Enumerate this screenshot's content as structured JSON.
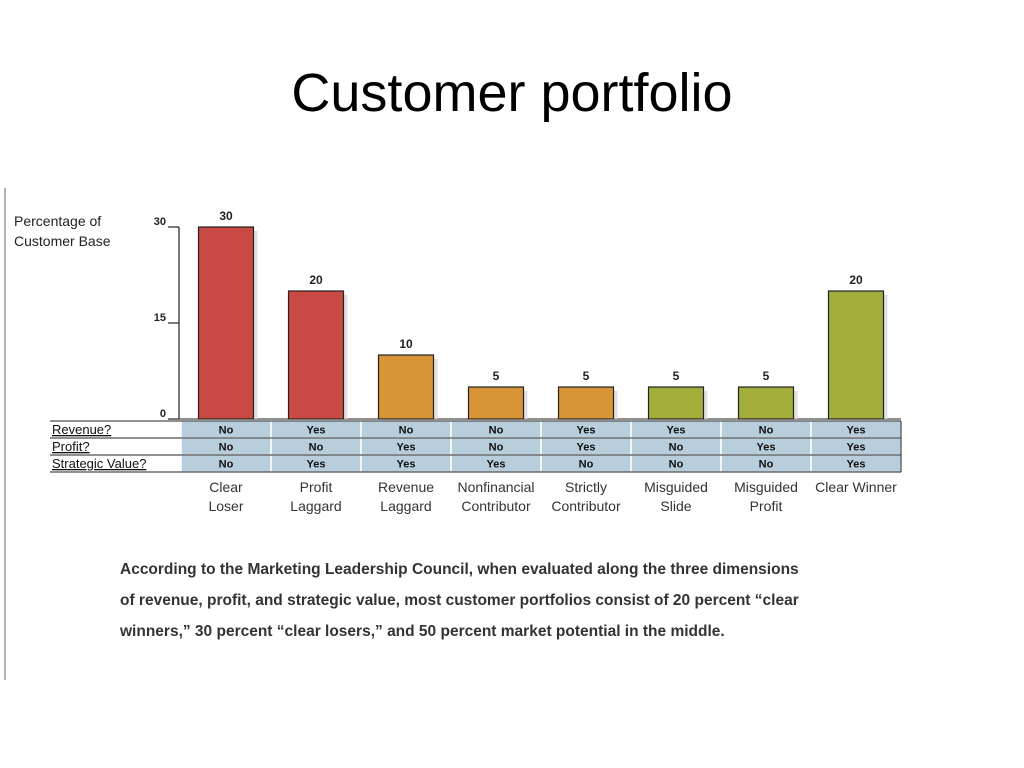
{
  "title": "Customer portfolio",
  "chart_data": {
    "type": "bar",
    "ylabel": [
      "Percentage of",
      "Customer Base"
    ],
    "ylim": [
      0,
      30
    ],
    "yticks": [
      "30",
      "15",
      "0"
    ],
    "categories": [
      [
        "Clear",
        "Loser"
      ],
      [
        "Profit",
        "Laggard"
      ],
      [
        "Revenue",
        "Laggard"
      ],
      [
        "Nonfinancial",
        "Contributor"
      ],
      [
        "Strictly",
        "Contributor"
      ],
      [
        "Misguided",
        "Slide"
      ],
      [
        "Misguided",
        "Profit"
      ],
      [
        "Clear Winner"
      ]
    ],
    "values": [
      30,
      20,
      10,
      5,
      5,
      5,
      5,
      20
    ],
    "value_labels": [
      "30",
      "20",
      "10",
      "5",
      "5",
      "5",
      "5",
      "20"
    ],
    "bar_colors": [
      "#c94943",
      "#c94943",
      "#d89535",
      "#d89535",
      "#d89535",
      "#a2ad3a",
      "#a2ad3a",
      "#a2ad3a"
    ],
    "table": {
      "rows": [
        {
          "label": "Revenue?",
          "values": [
            "No",
            "Yes",
            "No",
            "No",
            "Yes",
            "Yes",
            "No",
            "Yes"
          ]
        },
        {
          "label": "Profit?",
          "values": [
            "No",
            "No",
            "Yes",
            "No",
            "Yes",
            "No",
            "Yes",
            "Yes"
          ]
        },
        {
          "label": "Strategic Value?",
          "values": [
            "No",
            "Yes",
            "Yes",
            "Yes",
            "No",
            "No",
            "No",
            "Yes"
          ]
        }
      ]
    },
    "cell_color": "#b9cedc"
  },
  "caption": [
    "According to the Marketing Leadership Council, when evaluated along the three dimensions",
    "of revenue, profit, and strategic value, most customer portfolios consist of 20 percent “clear",
    "winners,” 30 percent “clear losers,” and 50 percent market potential in the middle."
  ]
}
